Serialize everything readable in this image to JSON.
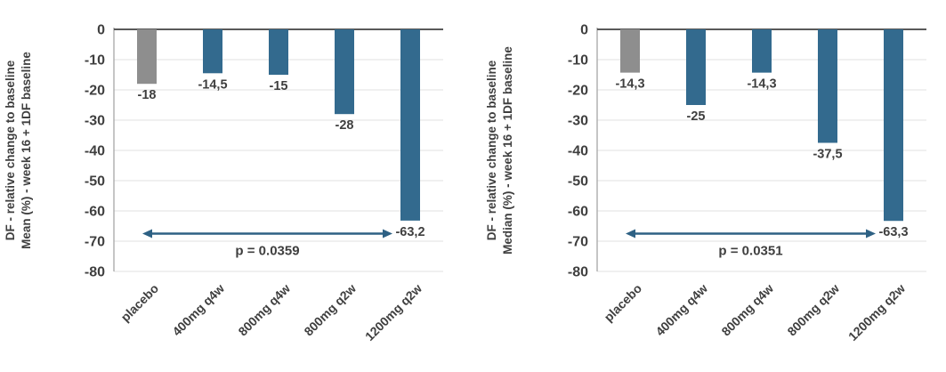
{
  "page": {
    "background_color": "#ffffff"
  },
  "colors": {
    "placebo_bar": "#8e8e8e",
    "treatment_bar": "#336a8e",
    "gridline": "#e8e8e8",
    "zero_line": "#595959",
    "axis_line": "#a6a6a6",
    "text": "#3f3f3f",
    "annotation_arrow": "#2e6184"
  },
  "chart_data": [
    {
      "type": "bar",
      "title": "",
      "ylabel_line1": "DF - relative change to baseline",
      "ylabel_line2": "Mean (%) - week 16 + 1DF baseline",
      "xlabel": "",
      "categories": [
        "placebo",
        "400mg q4w",
        "800mg q4w",
        "800mg q2w",
        "1200mg q2w"
      ],
      "values": [
        -18,
        -14.5,
        -15,
        -28,
        -63.2
      ],
      "value_labels": [
        "-18",
        "-14,5",
        "-15",
        "-28",
        "-63,2"
      ],
      "bar_colors": [
        "#8e8e8e",
        "#336a8e",
        "#336a8e",
        "#336a8e",
        "#336a8e"
      ],
      "ylim": [
        -80,
        0
      ],
      "yticks": [
        0,
        -10,
        -20,
        -30,
        -40,
        -50,
        -60,
        -70,
        -80
      ],
      "ytick_labels": [
        "0",
        "-10",
        "-20",
        "-30",
        "-40",
        "-50",
        "-60",
        "-70",
        "-80"
      ],
      "grid": true,
      "legend": "none",
      "annotation": {
        "text": "p = 0.0359",
        "from_category": "placebo",
        "to_category": "1200mg q2w",
        "y_value": -67.5
      }
    },
    {
      "type": "bar",
      "title": "",
      "ylabel_line1": "DF - relative change to baseline",
      "ylabel_line2": "Median (%) - week 16 + 1DF baseline",
      "xlabel": "",
      "categories": [
        "placebo",
        "400mg q4w",
        "800mg q4w",
        "800mg q2w",
        "1200mg q2w"
      ],
      "values": [
        -14.3,
        -25,
        -14.3,
        -37.5,
        -63.3
      ],
      "value_labels": [
        "-14,3",
        "-25",
        "-14,3",
        "-37,5",
        "-63,3"
      ],
      "bar_colors": [
        "#8e8e8e",
        "#336a8e",
        "#336a8e",
        "#336a8e",
        "#336a8e"
      ],
      "ylim": [
        -80,
        0
      ],
      "yticks": [
        0,
        -10,
        -20,
        -30,
        -40,
        -50,
        -60,
        -70,
        -80
      ],
      "ytick_labels": [
        "0",
        "-10",
        "-20",
        "-30",
        "-40",
        "-50",
        "-60",
        "-70",
        "-80"
      ],
      "grid": true,
      "legend": "none",
      "annotation": {
        "text": "p = 0.0351",
        "from_category": "placebo",
        "to_category": "1200mg q2w",
        "y_value": -67.5
      }
    }
  ]
}
